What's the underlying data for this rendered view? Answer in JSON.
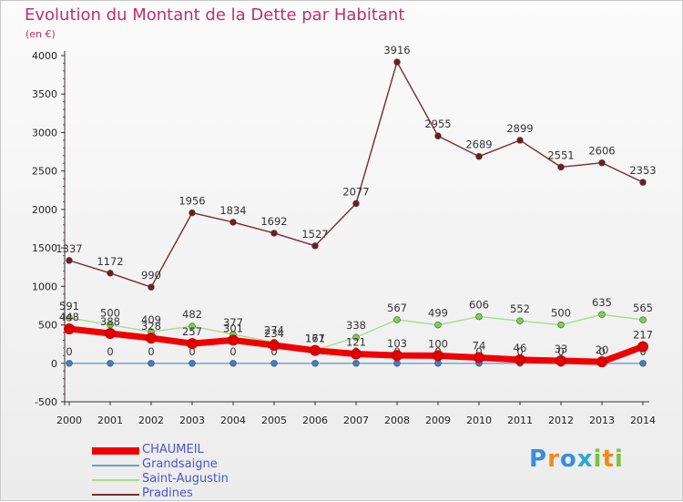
{
  "header": {
    "title": "Evolution du Montant de la Dette par Habitant",
    "subtitle": "(en €)"
  },
  "logo": {
    "text": "Proxiti",
    "colors": [
      "#3a8fd8",
      "#f08a1a",
      "#3a8fd8",
      "#2aa8d0",
      "#7cc241",
      "#f08a1a",
      "#7cc241"
    ]
  },
  "chart_data": {
    "type": "line",
    "title": "Evolution du Montant de la Dette par Habitant",
    "subtitle": "(en €)",
    "xlabel": "",
    "ylabel": "",
    "x": [
      "2000",
      "2001",
      "2002",
      "2003",
      "2004",
      "2005",
      "2006",
      "2007",
      "2008",
      "2009",
      "2010",
      "2011",
      "2012",
      "2013",
      "2014"
    ],
    "ylim": [
      -500,
      4000
    ],
    "yticks": [
      "-500",
      "0",
      "500",
      "1000",
      "1500",
      "2000",
      "2500",
      "3000",
      "3500",
      "4000"
    ],
    "grid": false,
    "legend_position": "bottom-left",
    "series": [
      {
        "name": "Pradines",
        "color": "#7a2a2a",
        "point_color": "#6e1e1e",
        "values": [
          1337,
          1172,
          990,
          1956,
          1834,
          1692,
          1527,
          2077,
          3916,
          2955,
          2689,
          2899,
          2551,
          2606,
          2353
        ],
        "labels": [
          "1337",
          "1172",
          "990",
          "1956",
          "1834",
          "1692",
          "1527",
          "2077",
          "3916",
          "2955",
          "2689",
          "2899",
          "2551",
          "2606",
          "2353"
        ]
      },
      {
        "name": "Saint-Augustin",
        "color": "#a8dc8c",
        "point_color": "#7cd24c",
        "values": [
          591,
          500,
          409,
          482,
          377,
          274,
          171,
          338,
          567,
          499,
          606,
          552,
          500,
          635,
          565
        ],
        "labels": [
          "591",
          "500",
          "409",
          "482",
          "377",
          "274",
          "171",
          "338",
          "567",
          "499",
          "606",
          "552",
          "500",
          "635",
          "565"
        ]
      },
      {
        "name": "Grandsaigne",
        "color": "#6aa0c8",
        "point_color": "#3a7fd0",
        "values": [
          0,
          0,
          0,
          0,
          0,
          0,
          0,
          0,
          0,
          0,
          0,
          0,
          0,
          0,
          0
        ],
        "labels": [
          "0",
          "0",
          "0",
          "0",
          "0",
          "0",
          "0",
          "0",
          "0",
          "0",
          "0",
          "0",
          "0",
          "0",
          "0"
        ]
      },
      {
        "name": "CHAUMEIL",
        "color": "#f00000",
        "point_color": "#e00000",
        "values": [
          448,
          388,
          328,
          257,
          301,
          234,
          167,
          121,
          103,
          100,
          74,
          46,
          33,
          20,
          217
        ],
        "labels": [
          "448",
          "388",
          "328",
          "257",
          "301",
          "234",
          "167",
          "121",
          "103",
          "100",
          "74",
          "46",
          "33",
          "20",
          "217"
        ]
      }
    ],
    "legend": [
      "CHAUMEIL",
      "Grandsaigne",
      "Saint-Augustin",
      "Pradines"
    ]
  }
}
